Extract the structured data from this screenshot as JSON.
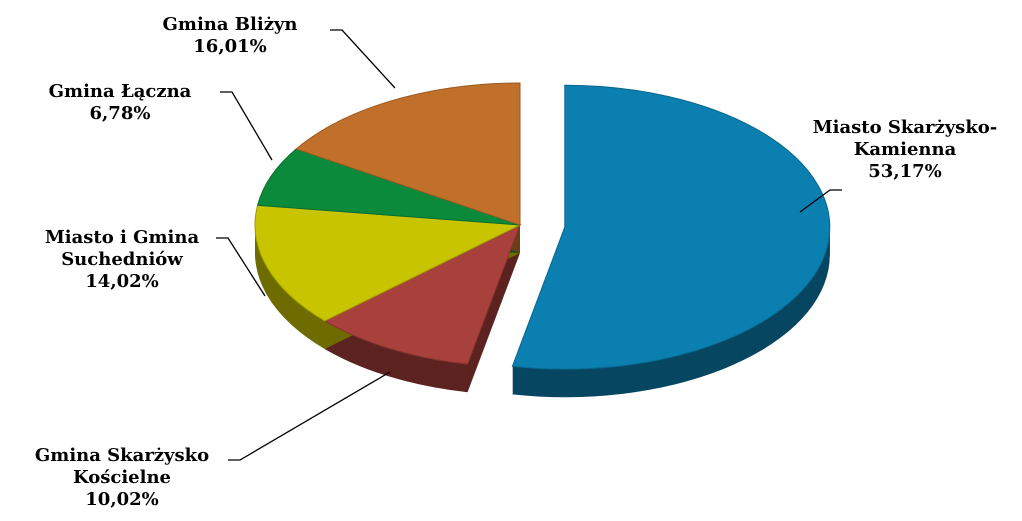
{
  "chart_data": {
    "type": "pie",
    "categories": [
      "Miasto Skarżysko-Kamienna",
      "Gmina Skarżysko Kościelne",
      "Miasto i Gmina Suchedniów",
      "Gmina Łączna",
      "Gmina Bliżyn"
    ],
    "values": [
      53.17,
      10.02,
      14.02,
      6.78,
      16.01
    ],
    "value_labels": [
      "53,17%",
      "10,02%",
      "14,02%",
      "6,78%",
      "16,01%"
    ],
    "colors": [
      "#0a7fb0",
      "#a8403c",
      "#c8c400",
      "#0a8a3a",
      "#c0702a"
    ]
  }
}
